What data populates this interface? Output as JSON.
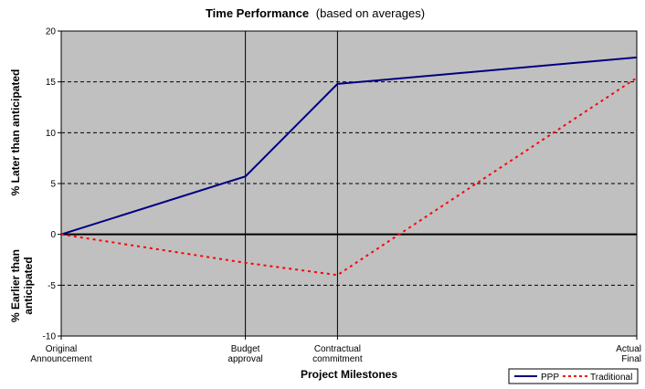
{
  "chart_data": {
    "type": "line",
    "title_bold": "Time Performance",
    "title_rest": "(based on averages)",
    "xlabel": "Project Milestones",
    "ylabel_upper": "% Later than anticipated",
    "ylabel_lower_1": "% Earlier than",
    "ylabel_lower_2": "anticipated",
    "ylim": [
      -10,
      20
    ],
    "yticks": [
      -10,
      -5,
      0,
      5,
      10,
      15,
      20
    ],
    "x_range": [
      0,
      100
    ],
    "milestones": [
      {
        "x": 0,
        "lines": [
          "Original",
          "Announcement"
        ]
      },
      {
        "x": 32,
        "lines": [
          "Budget",
          "approval"
        ]
      },
      {
        "x": 48,
        "lines": [
          "Contractual",
          "commitment"
        ]
      },
      {
        "x": 100,
        "lines": [
          "Actual",
          "Final"
        ]
      }
    ],
    "series": [
      {
        "name": "PPP",
        "color": "#000080",
        "style": "solid",
        "points": [
          [
            0,
            0
          ],
          [
            32,
            5.7
          ],
          [
            48,
            14.8
          ],
          [
            100,
            17.4
          ]
        ]
      },
      {
        "name": "Traditional",
        "color": "#ff0000",
        "style": "dotted",
        "points": [
          [
            0,
            0
          ],
          [
            32,
            -2.8
          ],
          [
            48,
            -4.0
          ],
          [
            100,
            15.4
          ]
        ]
      }
    ],
    "background": "#c0c0c0",
    "grid": true,
    "legend_position": "bottom-right"
  }
}
